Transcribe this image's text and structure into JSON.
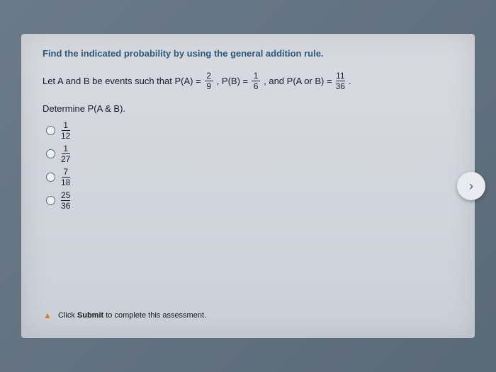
{
  "prompt": "Find the indicated probability by using the general addition rule.",
  "question": {
    "prefix": "Let A and B be events such that P(A) =",
    "pa_num": "2",
    "pa_den": "9",
    "mid1": ", P(B) =",
    "pb_num": "1",
    "pb_den": "6",
    "mid2": ", and P(A or B) =",
    "pab_num": "11",
    "pab_den": "36",
    "suffix": "."
  },
  "determine": "Determine P(A & B).",
  "options": [
    {
      "num": "1",
      "den": "12"
    },
    {
      "num": "1",
      "den": "27"
    },
    {
      "num": "7",
      "den": "18"
    },
    {
      "num": "25",
      "den": "36"
    }
  ],
  "submit": {
    "pre": "Click ",
    "bold": "Submit",
    "post": " to complete this assessment."
  },
  "nav_arrow": "›"
}
